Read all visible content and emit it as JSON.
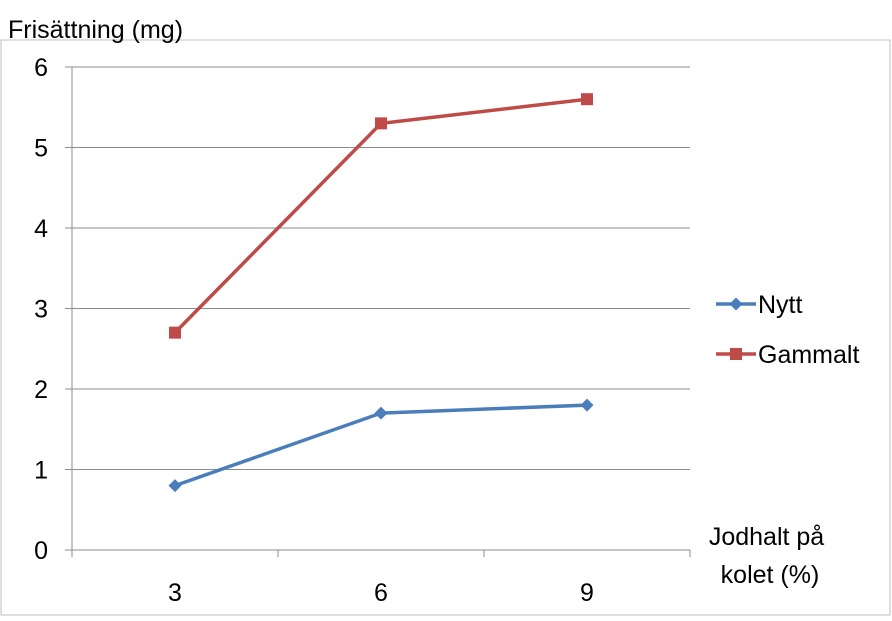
{
  "chart_data": {
    "type": "line",
    "ylabel": "Frisättning (mg)",
    "xlabel_lines": [
      "Jodhalt på",
      "kolet (%)"
    ],
    "categories": [
      "3",
      "6",
      "9"
    ],
    "ylim": [
      0,
      6
    ],
    "yticks": [
      "0",
      "1",
      "2",
      "3",
      "4",
      "5",
      "6"
    ],
    "grid": true,
    "legend_position": "right",
    "series": [
      {
        "name": "Nytt",
        "values": [
          0.8,
          1.7,
          1.8
        ],
        "color": "#4a7ebb",
        "marker": "diamond"
      },
      {
        "name": "Gammalt",
        "values": [
          2.7,
          5.3,
          5.6
        ],
        "color": "#be4b48",
        "marker": "square"
      }
    ]
  }
}
